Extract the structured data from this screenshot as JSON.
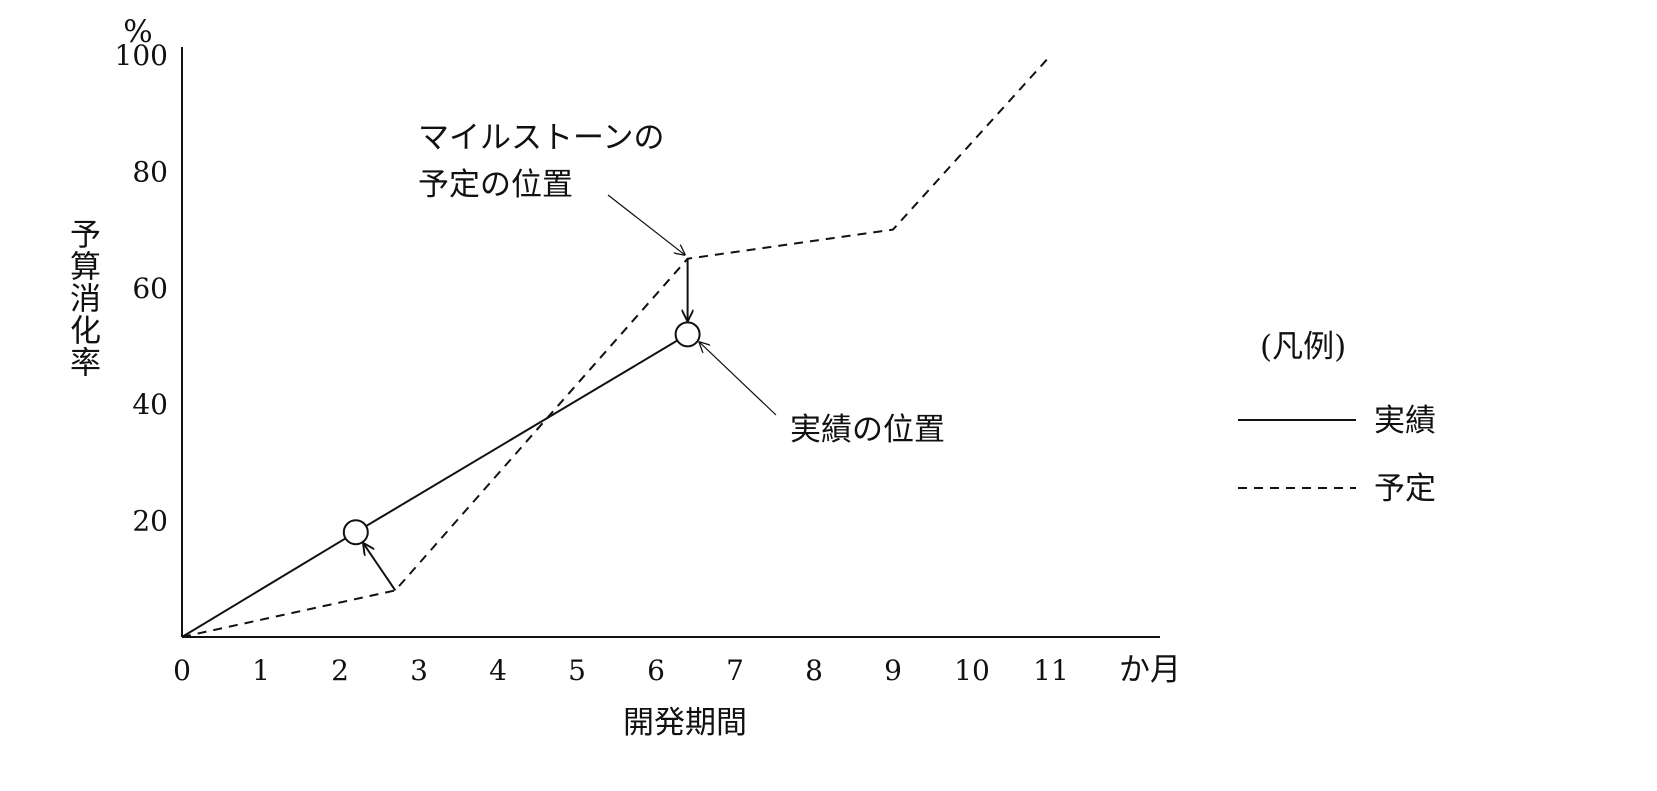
{
  "chart_data": {
    "type": "line",
    "xlabel": "開発期間",
    "ylabel": "予算消化率",
    "y_unit": "%",
    "x_unit": "か月",
    "x_ticks": [
      "0",
      "1",
      "2",
      "3",
      "4",
      "5",
      "6",
      "7",
      "8",
      "9",
      "10",
      "11"
    ],
    "y_ticks": [
      "20",
      "40",
      "60",
      "80",
      "100"
    ],
    "xlim": [
      0,
      12
    ],
    "ylim": [
      0,
      100
    ],
    "grid": false,
    "legend_position": "right",
    "legend_title": "(凡例)",
    "series": [
      {
        "name": "実績",
        "style": "solid",
        "x": [
          0,
          2.2,
          6.4
        ],
        "y": [
          0,
          18,
          52
        ],
        "markers": [
          [
            2.2,
            18
          ],
          [
            6.4,
            52
          ]
        ]
      },
      {
        "name": "予定",
        "style": "dashed",
        "x": [
          0,
          2.7,
          6.4,
          9,
          11
        ],
        "y": [
          0,
          8,
          65,
          70,
          100
        ]
      }
    ],
    "annotations": [
      {
        "text": [
          "マイルストーンの",
          "予定の位置"
        ],
        "points_to": [
          6.4,
          65
        ]
      },
      {
        "text": [
          "実績の位置"
        ],
        "points_to": [
          6.4,
          52
        ]
      }
    ],
    "colors": {
      "line": "#111111",
      "background": "#ffffff"
    }
  }
}
